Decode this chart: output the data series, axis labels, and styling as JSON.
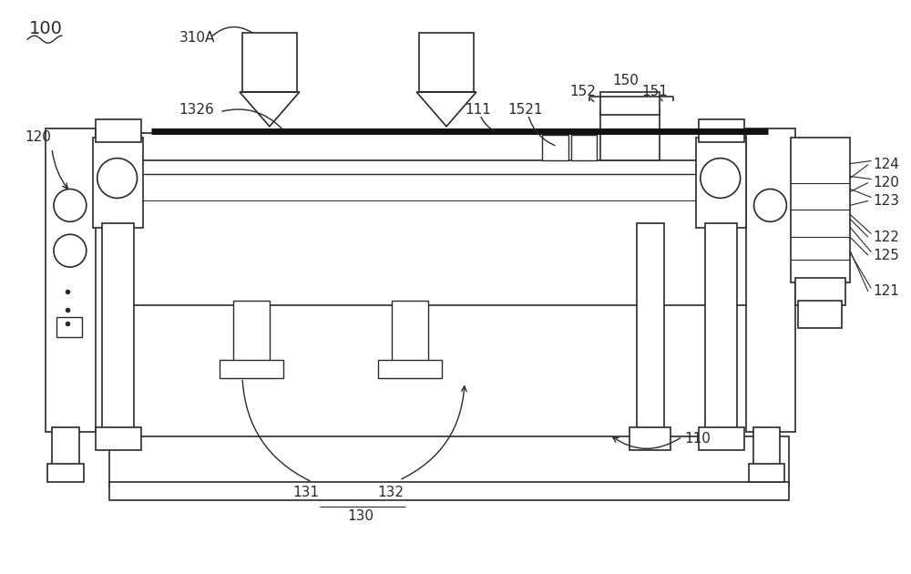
{
  "bg_color": "#ffffff",
  "line_color": "#2a2a2a",
  "fig_width": 10.0,
  "fig_height": 6.3,
  "dpi": 100
}
